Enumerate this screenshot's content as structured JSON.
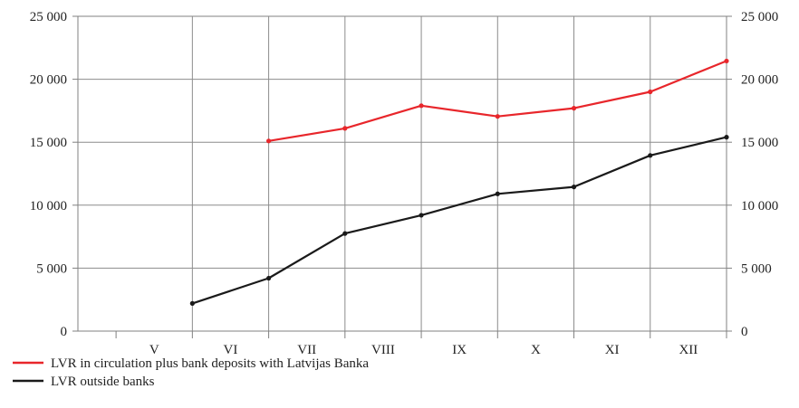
{
  "chart_data": {
    "type": "line",
    "categories": [
      "V",
      "VI",
      "VII",
      "VIII",
      "IX",
      "X",
      "XI",
      "XII"
    ],
    "x_ticks": [
      "V",
      "VI",
      "VII",
      "VIII",
      "IX",
      "X",
      "XI",
      "XII"
    ],
    "y_ticks": [
      "0",
      "5 000",
      "10 000",
      "15 000",
      "20 000",
      "25 000"
    ],
    "y_tick_values": [
      0,
      5000,
      10000,
      15000,
      20000,
      25000
    ],
    "ylim": [
      0,
      25000
    ],
    "grid": true,
    "legend_position": "bottom-left",
    "series": [
      {
        "name": "LVR in circulation plus bank deposits with Latvijas Banka",
        "color": "#e8262b",
        "points": [
          {
            "x": "VI|VII",
            "y": 15100
          },
          {
            "x": "VII|VIII",
            "y": 16100
          },
          {
            "x": "VIII|IX",
            "y": 17900
          },
          {
            "x": "IX|X",
            "y": 17050
          },
          {
            "x": "X|XI",
            "y": 17700
          },
          {
            "x": "XI|XII",
            "y": 19000
          },
          {
            "x": "XII end",
            "y": 21450
          }
        ]
      },
      {
        "name": "LVR outside banks",
        "color": "#1a1a1a",
        "points": [
          {
            "x": "V|VI",
            "y": 2200
          },
          {
            "x": "VI|VII",
            "y": 4200
          },
          {
            "x": "VII|VIII",
            "y": 7750
          },
          {
            "x": "VIII|IX",
            "y": 9200
          },
          {
            "x": "IX|X",
            "y": 10900
          },
          {
            "x": "X|XI",
            "y": 11450
          },
          {
            "x": "XI|XII",
            "y": 13950
          },
          {
            "x": "XII end",
            "y": 15400
          }
        ]
      }
    ]
  }
}
